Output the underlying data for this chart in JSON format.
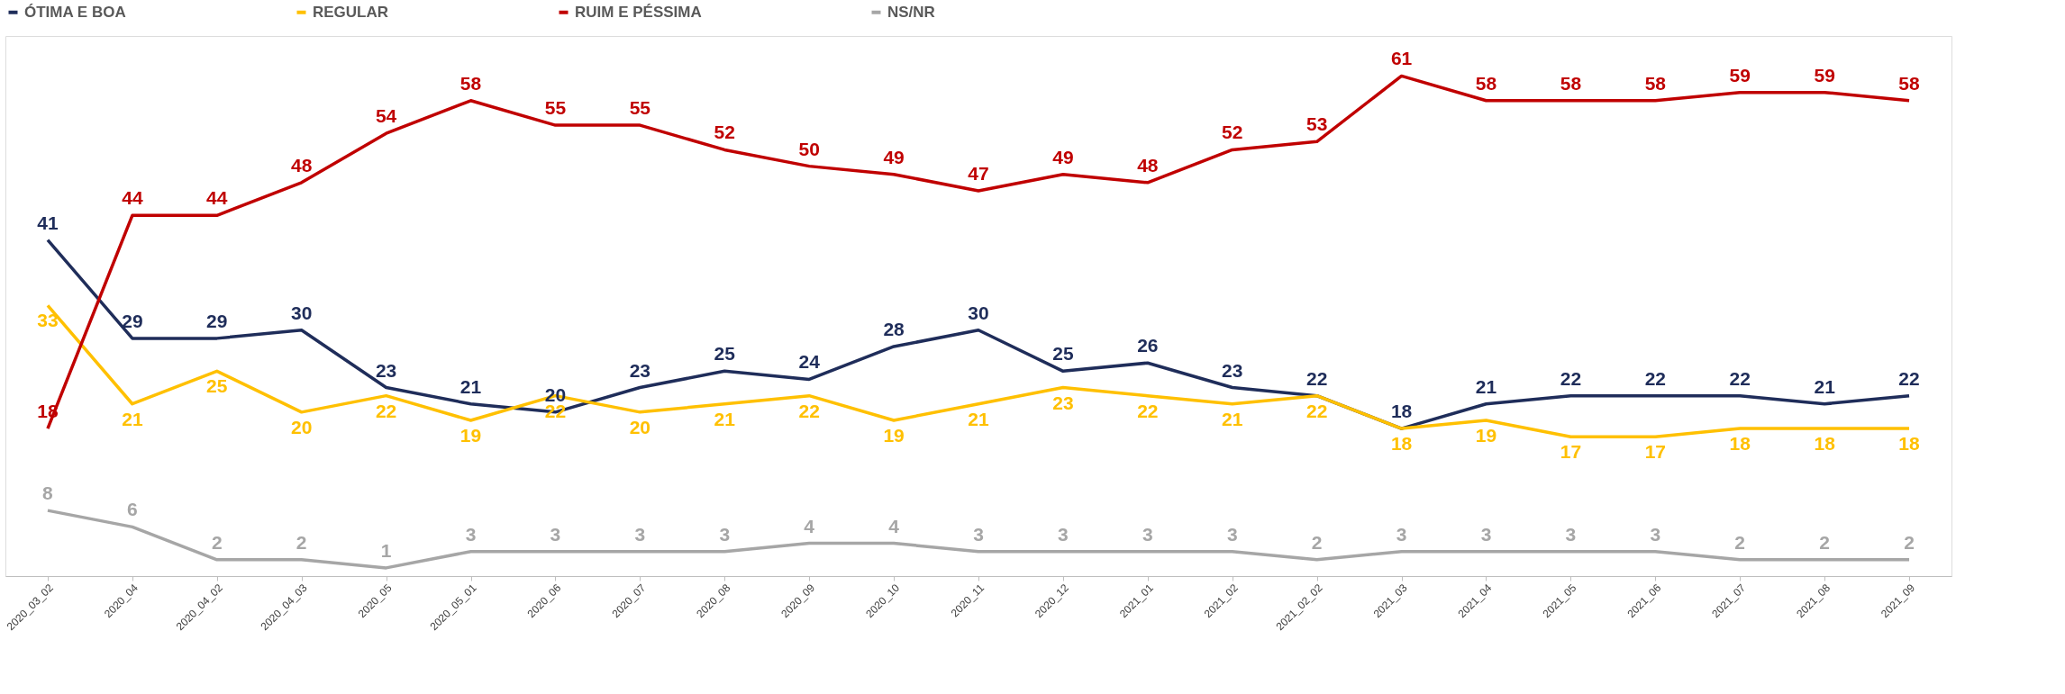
{
  "chart_data": {
    "type": "line",
    "data_labels": true,
    "legend": "top",
    "grid": false,
    "marker": "none",
    "line_style": "solid",
    "categories": [
      "2020_03_02",
      "2020_04",
      "2020_04_02",
      "2020_04_03",
      "2020_05",
      "2020_05_01",
      "2020_06",
      "2020_07",
      "2020_08",
      "2020_09",
      "2020_10",
      "2020_11",
      "2020_12",
      "2021_01",
      "2021_02",
      "2021_02_02",
      "2021_03",
      "2021_04",
      "2021_05",
      "2021_06",
      "2021_07",
      "2021_08",
      "2021_09"
    ],
    "series": [
      {
        "name": "ÓTIMA E BOA",
        "color": "#1f2d5a",
        "values": [
          41,
          29,
          29,
          30,
          23,
          21,
          20,
          23,
          25,
          24,
          28,
          30,
          25,
          26,
          23,
          22,
          18,
          21,
          22,
          22,
          22,
          21,
          22
        ]
      },
      {
        "name": "REGULAR",
        "color": "#ffc000",
        "values": [
          33,
          21,
          25,
          20,
          22,
          19,
          22,
          20,
          21,
          22,
          19,
          21,
          23,
          22,
          21,
          22,
          18,
          19,
          17,
          17,
          18,
          18,
          18
        ]
      },
      {
        "name": "RUIM E PÉSSIMA",
        "color": "#c00000",
        "values": [
          18,
          44,
          44,
          48,
          54,
          58,
          55,
          55,
          52,
          50,
          49,
          47,
          49,
          48,
          52,
          53,
          61,
          58,
          58,
          58,
          59,
          59,
          58
        ]
      },
      {
        "name": "NS/NR",
        "color": "#a6a6a6",
        "values": [
          8,
          6,
          2,
          2,
          1,
          3,
          3,
          3,
          3,
          4,
          4,
          3,
          3,
          3,
          3,
          2,
          3,
          3,
          3,
          3,
          2,
          2,
          2
        ]
      }
    ]
  }
}
